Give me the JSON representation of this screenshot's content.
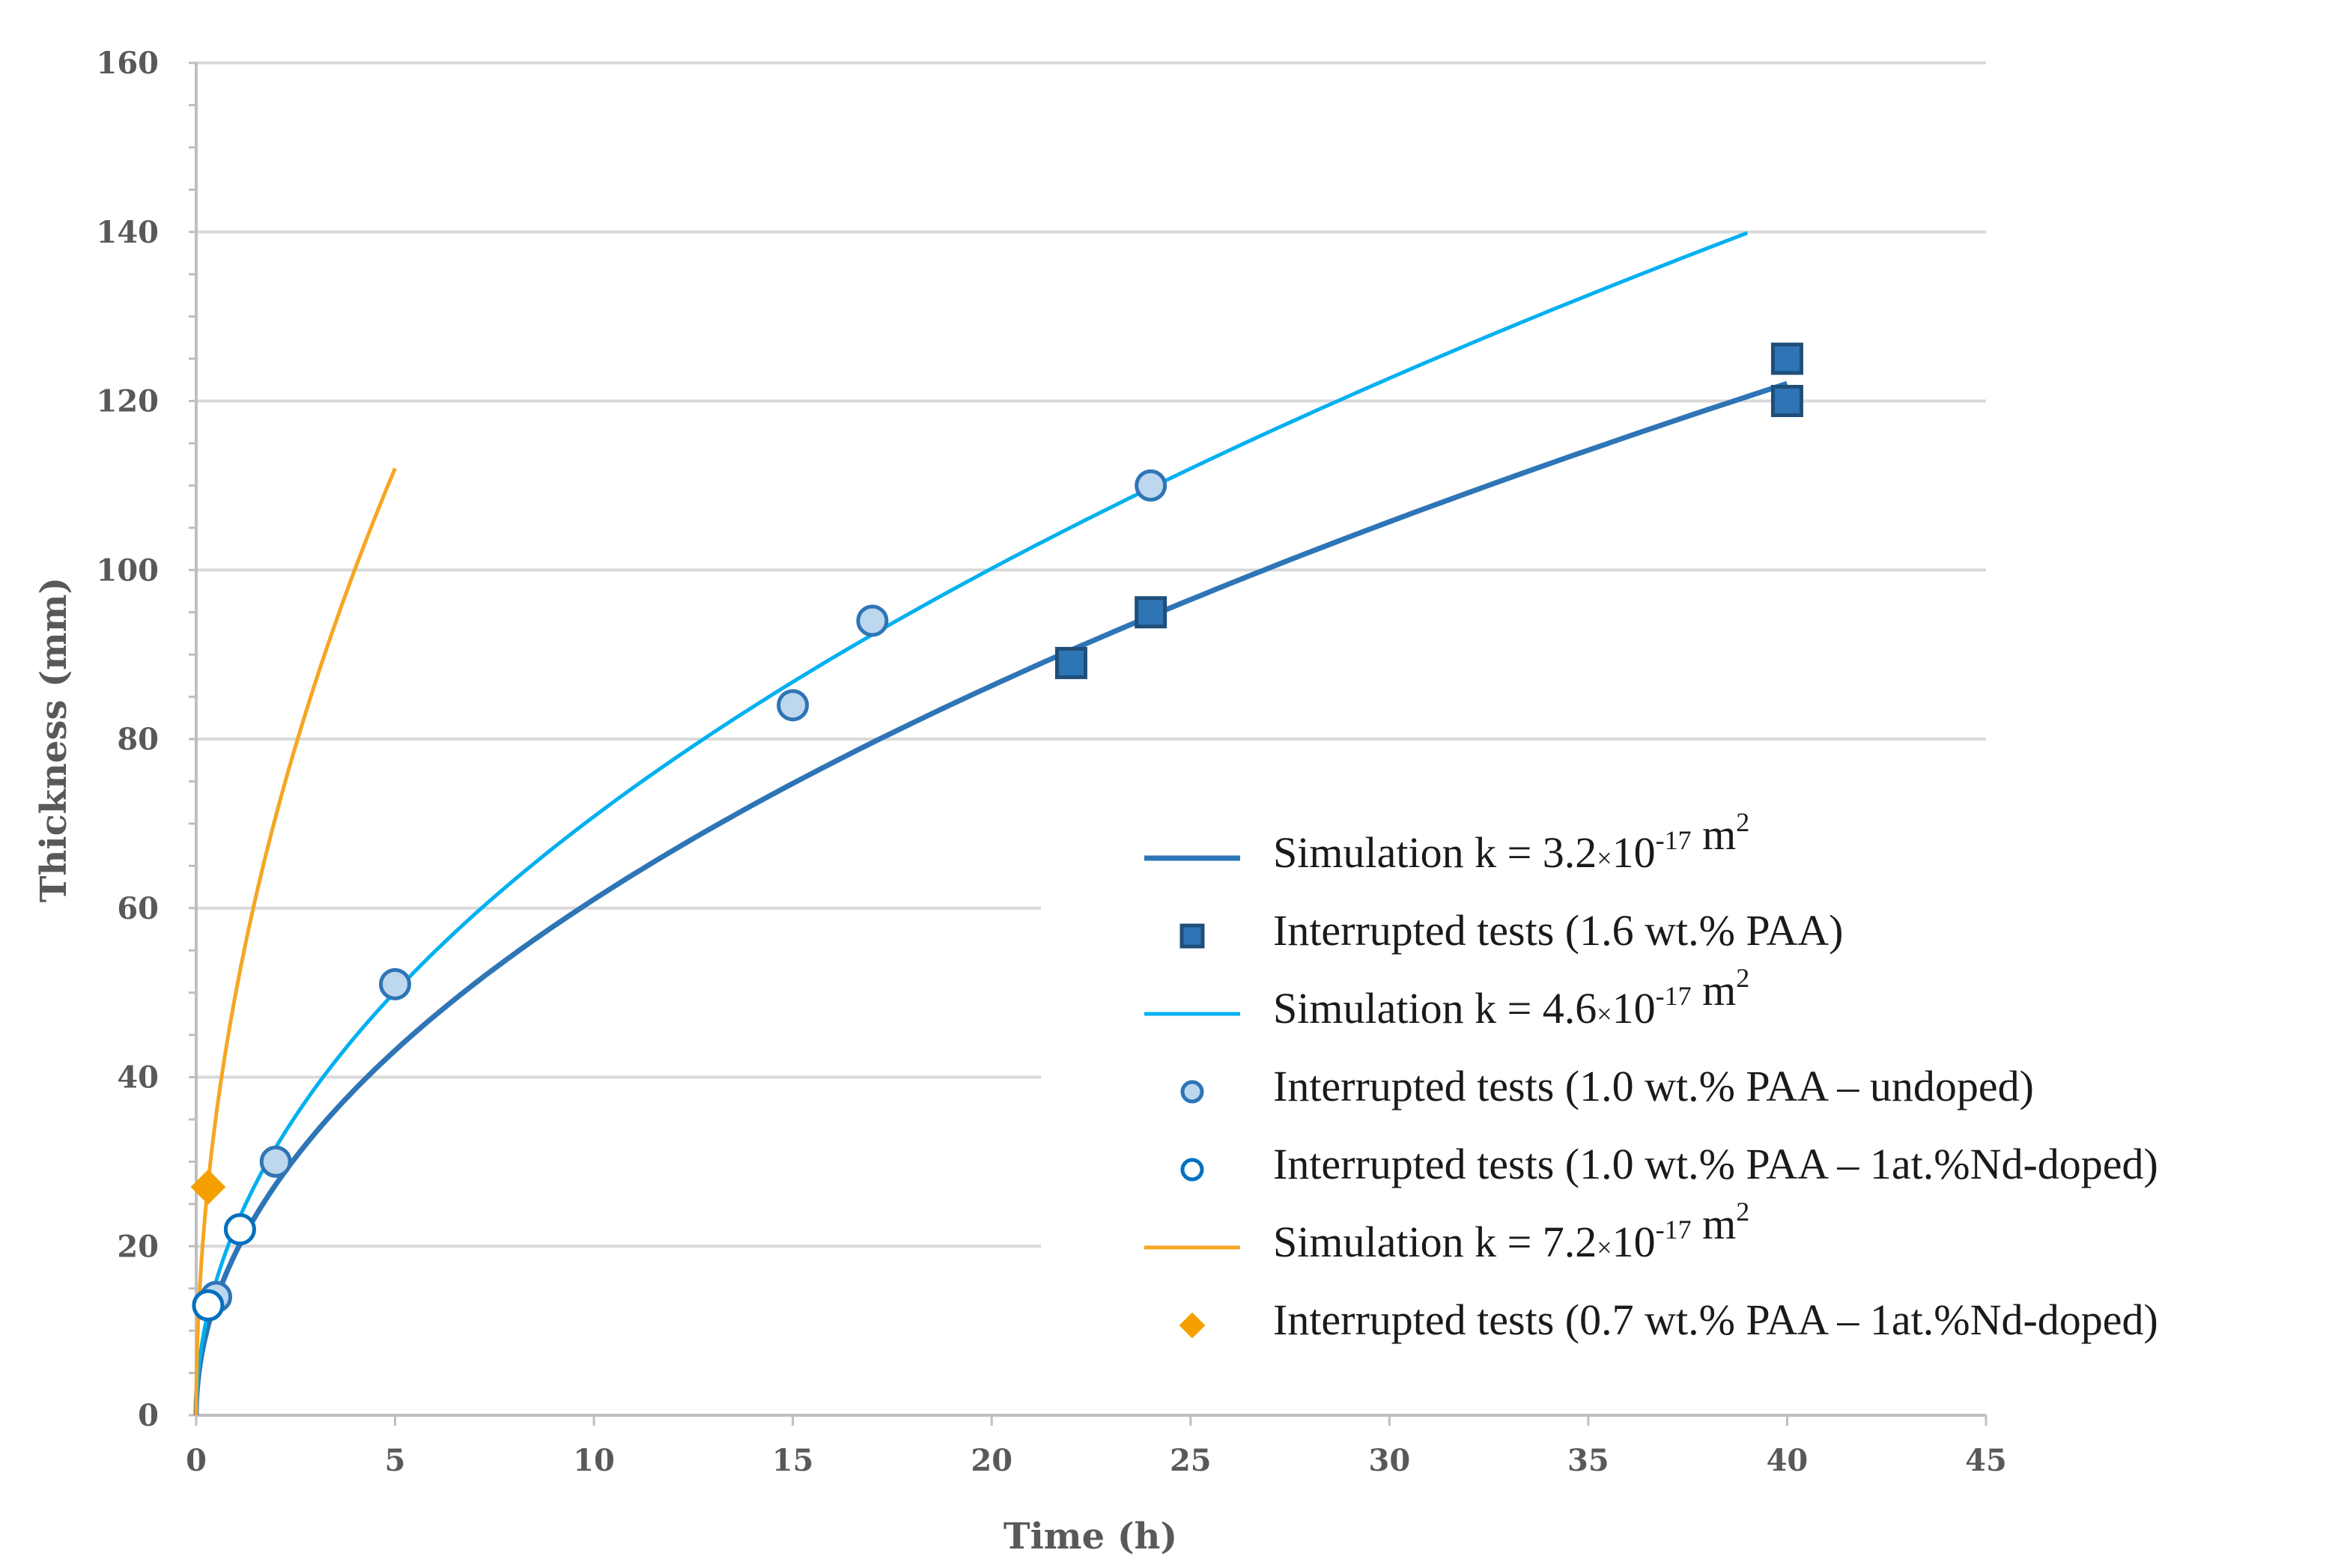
{
  "chart_data": {
    "type": "scatter",
    "xlabel": "Time (h)",
    "ylabel": "Thickness (mm)",
    "xlim": [
      0,
      45
    ],
    "ylim": [
      0,
      160
    ],
    "xticks": [
      "0",
      "5",
      "10",
      "15",
      "20",
      "25",
      "30",
      "35",
      "40",
      "45"
    ],
    "yticks": [
      "0",
      "20",
      "40",
      "60",
      "80",
      "100",
      "120",
      "140",
      "160"
    ],
    "grid": true,
    "legend_position": "bottom-right",
    "series": [
      {
        "name": "Simulation k = 3.2×10-17 m2",
        "kind": "line",
        "color": "#2e75b6",
        "coefficient": 19.3,
        "x_max": 40,
        "legend": {
          "prefix": "Simulation k = 3.2",
          "times": "×",
          "base": "10",
          "exponent": "-17",
          "unit": "m",
          "unit_sup": "2"
        }
      },
      {
        "name": "Interrupted tests (1.6 wt.% PAA)",
        "kind": "marker",
        "marker": "square",
        "color": "#2e75b6",
        "edge": "#1f4e79",
        "x": [
          22,
          24,
          40,
          40
        ],
        "y": [
          89,
          95,
          125,
          120
        ],
        "legend": {
          "text": "Interrupted tests (1.6 wt.% PAA)"
        }
      },
      {
        "name": "Simulation k = 4.6×10-17 m2",
        "kind": "line",
        "color": "#00b0f0",
        "coefficient": 22.4,
        "x_max": 39,
        "legend": {
          "prefix": "Simulation k = 4.6",
          "times": "×",
          "base": "10",
          "exponent": "-17",
          "unit": "m",
          "unit_sup": "2"
        }
      },
      {
        "name": "Interrupted tests (1.0 wt.% PAA – undoped)",
        "kind": "marker",
        "marker": "circle",
        "color": "#bdd7ee",
        "edge": "#2e75b6",
        "x": [
          0.5,
          2,
          5,
          15,
          17,
          24
        ],
        "y": [
          14,
          30,
          51,
          84,
          94,
          110
        ],
        "legend": {
          "text": "Interrupted tests (1.0 wt.% PAA – undoped)"
        }
      },
      {
        "name": "Interrupted tests (1.0 wt.% PAA – 1at.%Nd-doped)",
        "kind": "marker",
        "marker": "circle",
        "color": "#ffffff",
        "edge": "#0070c0",
        "x": [
          0.3,
          1.1
        ],
        "y": [
          13,
          22
        ],
        "legend": {
          "text": "Interrupted tests (1.0 wt.% PAA – 1at.%Nd-doped)"
        }
      },
      {
        "name": "Simulation k = 7.2×10-17 m2",
        "kind": "line",
        "color": "#f5a623",
        "coefficient": 50.1,
        "x_max": 5,
        "legend": {
          "prefix": "Simulation k = 7.2",
          "times": "×",
          "base": "10",
          "exponent": "-17",
          "unit": "m",
          "unit_sup": "2"
        }
      },
      {
        "name": "Interrupted tests (0.7 wt.% PAA – 1at.%Nd-doped)",
        "kind": "marker",
        "marker": "diamond",
        "color": "#f5a000",
        "edge": "#f5a000",
        "x": [
          0.3
        ],
        "y": [
          27
        ],
        "legend": {
          "text": "Interrupted tests (0.7 wt.% PAA – 1at.%Nd-doped)"
        }
      }
    ]
  }
}
